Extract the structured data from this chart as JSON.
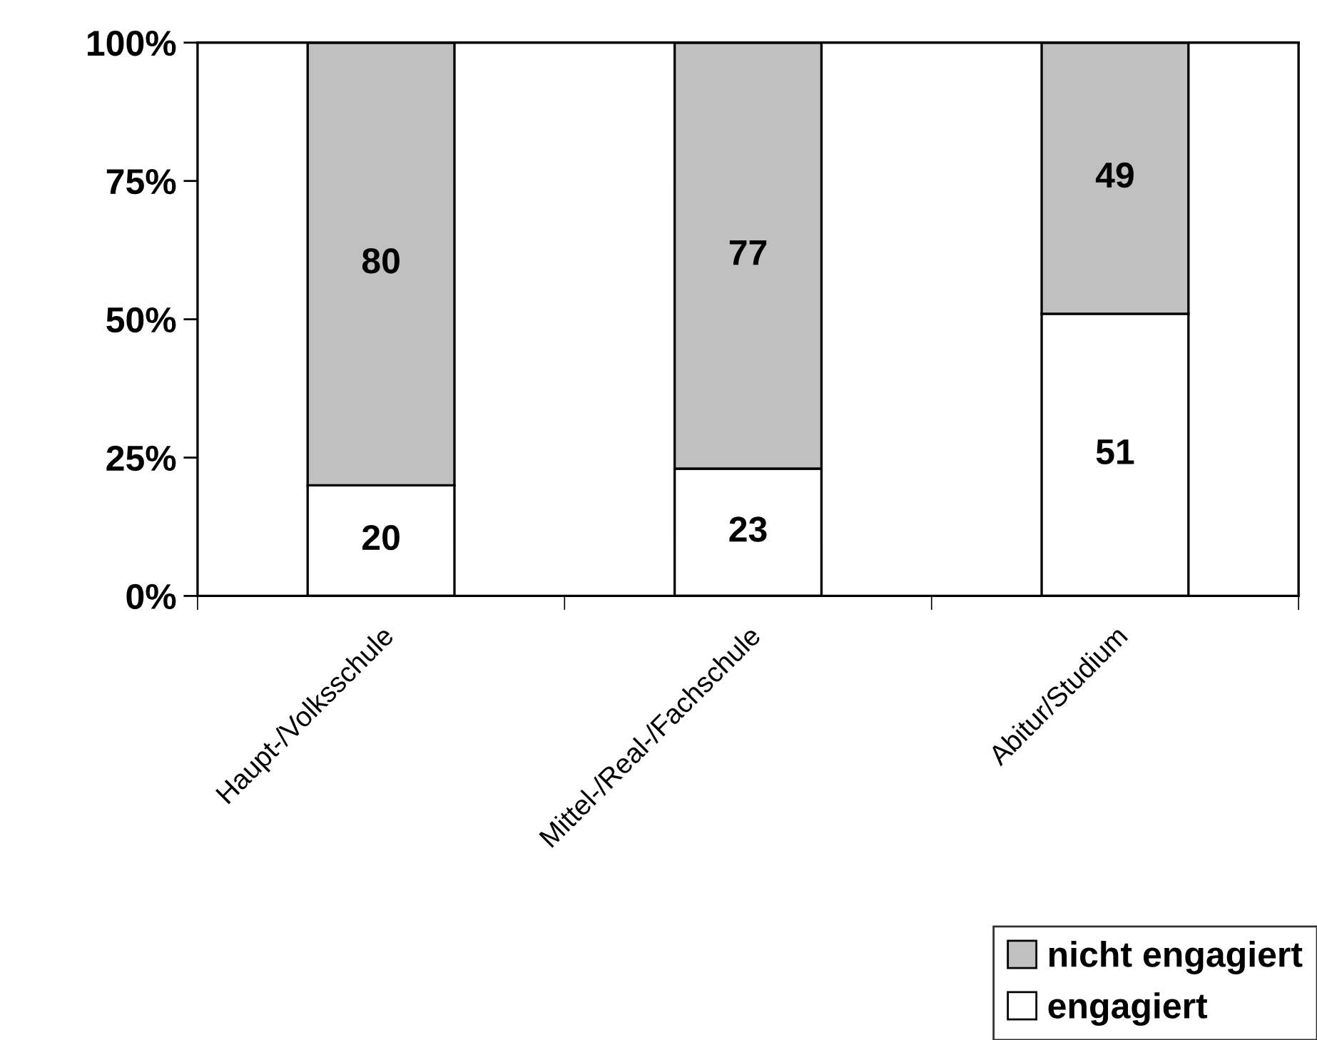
{
  "chart_data": {
    "type": "bar",
    "stacked": true,
    "categories": [
      "Haupt-/Volksschule",
      "Mittel-/Real-/Fachschule",
      "Abitur/Studium"
    ],
    "series": [
      {
        "name": "engagiert",
        "color": "#ffffff",
        "values": [
          20,
          23,
          51
        ]
      },
      {
        "name": "nicht engagiert",
        "color": "#c0c0c0",
        "values": [
          80,
          77,
          49
        ]
      }
    ],
    "ylim": [
      0,
      100
    ],
    "yticks": [
      {
        "value": 0,
        "label": "0%"
      },
      {
        "value": 25,
        "label": "25%"
      },
      {
        "value": 50,
        "label": "50%"
      },
      {
        "value": 75,
        "label": "75%"
      },
      {
        "value": 100,
        "label": "100%"
      }
    ],
    "data_labels": true,
    "legend": "bottom right",
    "grid": false
  }
}
